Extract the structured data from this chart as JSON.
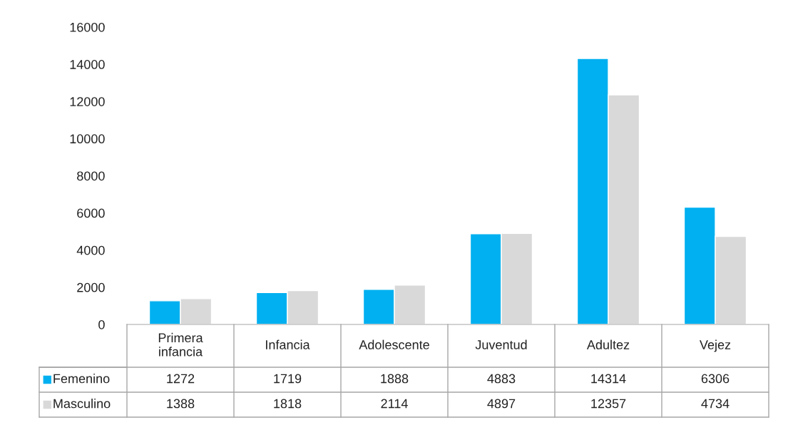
{
  "chart_data": {
    "type": "bar",
    "categories": [
      "Primera\ninfancia",
      "Infancia",
      "Adolescente",
      "Juventud",
      "Adultez",
      "Vejez"
    ],
    "series": [
      {
        "name": "Femenino",
        "color": "#00b0f0",
        "values": [
          1272,
          1719,
          1888,
          4883,
          14314,
          6306
        ]
      },
      {
        "name": "Masculino",
        "color": "#d9d9d9",
        "values": [
          1388,
          1818,
          2114,
          4897,
          12357,
          4734
        ]
      }
    ],
    "ylim": [
      0,
      16000
    ],
    "yticks": [
      0,
      2000,
      4000,
      6000,
      8000,
      10000,
      12000,
      14000,
      16000
    ],
    "grid": false,
    "legend": "bottom left",
    "data_labels": true
  }
}
